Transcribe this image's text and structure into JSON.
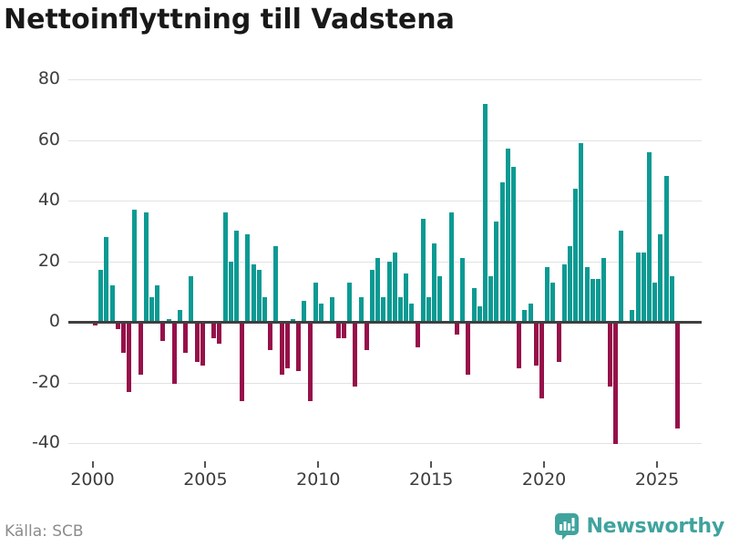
{
  "chart_data": {
    "type": "bar",
    "title": "Nettoinflyttning till Vadstena",
    "source": "Källa: SCB",
    "x_start_year": 2000,
    "x_start_quarter": 1,
    "frequency": "quarterly",
    "x_tick_years": [
      "2000",
      "2005",
      "2010",
      "2015",
      "2020",
      "2025"
    ],
    "y_ticks": [
      {
        "v": 80,
        "label": "80"
      },
      {
        "v": 60,
        "label": "60"
      },
      {
        "v": 40,
        "label": "40"
      },
      {
        "v": 20,
        "label": "20"
      },
      {
        "v": 0,
        "label": "0"
      },
      {
        "v": -20,
        "label": "-20"
      },
      {
        "v": -40,
        "label": "-40"
      }
    ],
    "ylim": [
      -44,
      84
    ],
    "grid": "horizontal",
    "legend": "none",
    "series": [
      {
        "name": "Nettoinflyttning per kvartal",
        "values": [
          -1,
          17,
          28,
          12,
          -2,
          -10,
          -23,
          37,
          -17,
          36,
          8,
          12,
          -6,
          1,
          -20,
          4,
          -10,
          15,
          -13,
          -14,
          0,
          -5,
          -7,
          36,
          20,
          30,
          -26,
          29,
          19,
          17,
          8,
          -9,
          25,
          -17,
          -15,
          1,
          -16,
          7,
          -26,
          13,
          6,
          0,
          8,
          -5,
          -5,
          13,
          -21,
          8,
          -9,
          17,
          21,
          8,
          20,
          23,
          8,
          16,
          6,
          -8,
          34,
          8,
          26,
          15,
          0,
          36,
          -4,
          21,
          -17,
          11,
          5,
          72,
          15,
          33,
          46,
          57,
          51,
          -15,
          4,
          6,
          -14,
          -25,
          18,
          13,
          -13,
          19,
          25,
          44,
          59,
          18,
          14,
          14,
          21,
          -21,
          -40,
          30,
          0,
          4,
          23,
          23,
          56,
          13,
          29,
          48,
          15,
          -35
        ]
      }
    ],
    "colors": {
      "positive": "#0b9a93",
      "negative": "#96104a",
      "gridline": "#e2e2e2",
      "zero_axis": "#3f3f3f"
    }
  },
  "branding": {
    "name": "Newsworthy",
    "logo_icon": "speech-bubble-bar-chart-icon",
    "color": "#3fa39e"
  }
}
